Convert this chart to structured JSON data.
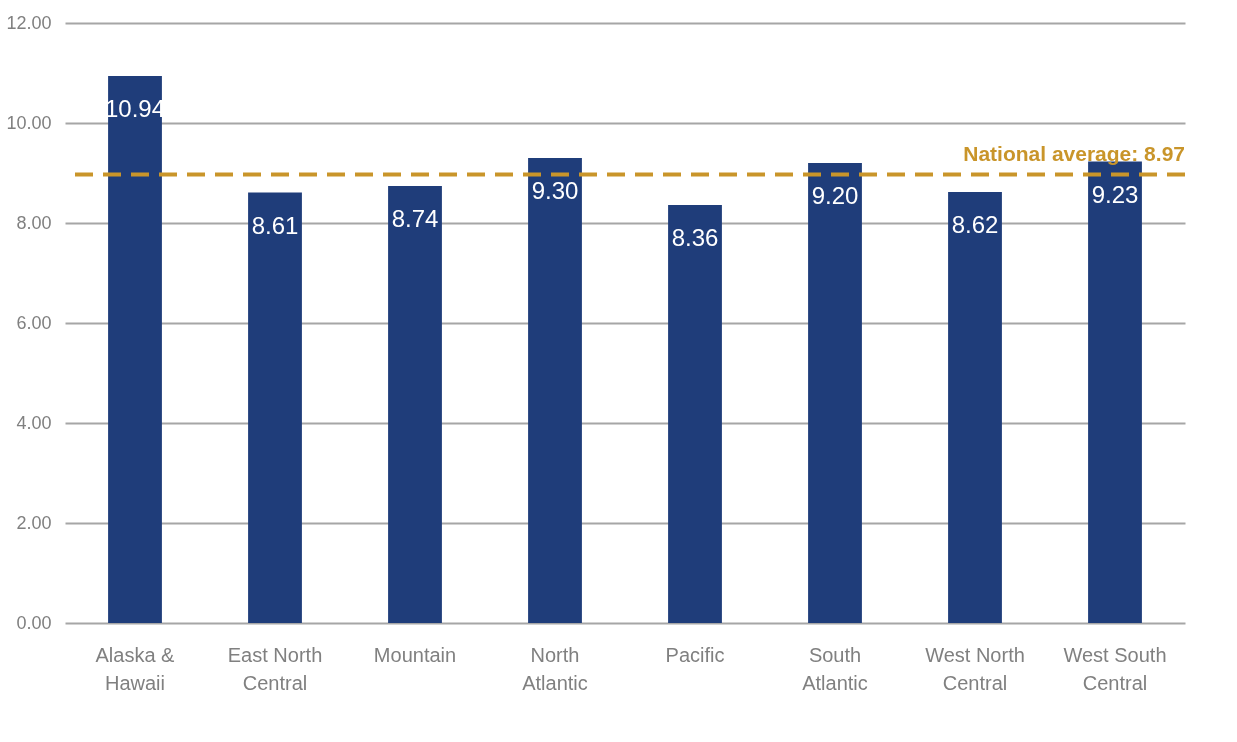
{
  "chart_data": {
    "type": "bar",
    "categories": [
      "Alaska & Hawaii",
      "East North Central",
      "Mountain",
      "North Atlantic",
      "Pacific",
      "South Atlantic",
      "West North Central",
      "West South Central"
    ],
    "values": [
      10.94,
      8.61,
      8.74,
      9.3,
      8.36,
      9.2,
      8.62,
      9.23
    ],
    "value_labels": [
      "10.94",
      "8.61",
      "8.74",
      "9.30",
      "8.36",
      "9.20",
      "8.62",
      "9.23"
    ],
    "color": "#1f3d7a",
    "ylim": [
      0,
      12
    ],
    "yticks": [
      {
        "value": 0,
        "label": "0.00"
      },
      {
        "value": 2,
        "label": "2.00"
      },
      {
        "value": 4,
        "label": "4.00"
      },
      {
        "value": 6,
        "label": "6.00"
      },
      {
        "value": 8,
        "label": "8.00"
      },
      {
        "value": 10,
        "label": "10.00"
      },
      {
        "value": 12,
        "label": "12.00"
      }
    ],
    "grid": "y",
    "ref_lines": [
      {
        "axis": "y",
        "value": 8.97,
        "label": "National average: 8.97",
        "color": "#c9952a",
        "line_style": "dashed"
      }
    ]
  }
}
